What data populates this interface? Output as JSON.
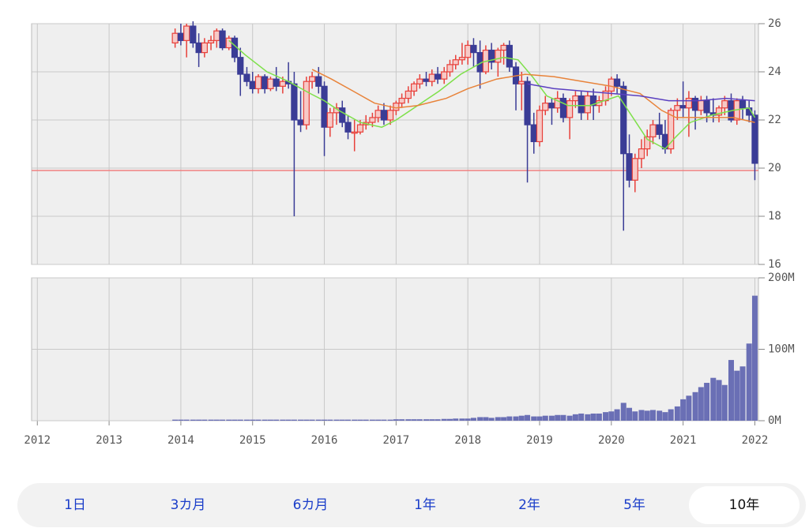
{
  "chart_data": {
    "type": "candlestick",
    "xlim": [
      2011.92,
      2022.05
    ],
    "xticks": [
      2012,
      2013,
      2014,
      2015,
      2016,
      2017,
      2018,
      2019,
      2020,
      2021,
      2022
    ],
    "ylim": [
      16,
      26
    ],
    "yticks": [
      16,
      18,
      20,
      22,
      24,
      26
    ],
    "y2lim": [
      0,
      200000000
    ],
    "y2ticks": [
      {
        "value": 0,
        "label": "0M"
      },
      {
        "value": 100000000,
        "label": "100M"
      },
      {
        "value": 200000000,
        "label": "200M"
      }
    ],
    "grid": true,
    "up_color": "#e8403a",
    "down_color": "#3a3c96",
    "volume_color": "#6a6fb5",
    "x": [
      2013.92,
      2014,
      2014.08,
      2014.17,
      2014.25,
      2014.33,
      2014.42,
      2014.5,
      2014.58,
      2014.67,
      2014.75,
      2014.83,
      2014.92,
      2015,
      2015.08,
      2015.17,
      2015.25,
      2015.33,
      2015.42,
      2015.5,
      2015.58,
      2015.67,
      2015.75,
      2015.83,
      2015.92,
      2016,
      2016.08,
      2016.17,
      2016.25,
      2016.33,
      2016.42,
      2016.5,
      2016.58,
      2016.67,
      2016.75,
      2016.83,
      2016.92,
      2017,
      2017.08,
      2017.17,
      2017.25,
      2017.33,
      2017.42,
      2017.5,
      2017.58,
      2017.67,
      2017.75,
      2017.83,
      2017.92,
      2018,
      2018.08,
      2018.17,
      2018.25,
      2018.33,
      2018.42,
      2018.5,
      2018.58,
      2018.67,
      2018.75,
      2018.83,
      2018.92,
      2019,
      2019.08,
      2019.17,
      2019.25,
      2019.33,
      2019.42,
      2019.5,
      2019.58,
      2019.67,
      2019.75,
      2019.83,
      2019.92,
      2020,
      2020.08,
      2020.17,
      2020.25,
      2020.33,
      2020.42,
      2020.5,
      2020.58,
      2020.67,
      2020.75,
      2020.83,
      2020.92,
      2021,
      2021.08,
      2021.17,
      2021.25,
      2021.33,
      2021.42,
      2021.5,
      2021.58,
      2021.67,
      2021.75,
      2021.83,
      2021.92,
      2022
    ],
    "open": [
      25.2,
      25.6,
      25.3,
      25.9,
      25.2,
      24.8,
      25.2,
      25.3,
      25.7,
      25.0,
      25.4,
      24.6,
      23.9,
      23.6,
      23.3,
      23.8,
      23.3,
      23.7,
      23.4,
      23.6,
      23.5,
      22.0,
      21.8,
      23.6,
      23.8,
      23.4,
      21.7,
      22.3,
      22.5,
      21.9,
      21.5,
      21.5,
      21.8,
      21.9,
      22.1,
      22.4,
      22.0,
      22.4,
      22.7,
      22.9,
      23.2,
      23.5,
      23.7,
      23.6,
      23.9,
      23.7,
      24.0,
      24.3,
      24.5,
      24.6,
      25.1,
      24.8,
      24.0,
      24.9,
      24.4,
      24.9,
      25.1,
      24.2,
      23.5,
      23.6,
      21.8,
      21.1,
      22.4,
      22.7,
      22.5,
      22.9,
      22.1,
      22.8,
      23.0,
      22.3,
      23.0,
      22.6,
      22.8,
      23.2,
      23.7,
      23.4,
      20.6,
      19.5,
      20.4,
      20.8,
      21.3,
      21.8,
      21.4,
      20.8,
      22.4,
      22.6,
      22.5,
      22.9,
      22.4,
      22.8,
      22.3,
      22.2,
      22.5,
      22.8,
      22.0,
      22.8,
      22.5,
      22.2
    ],
    "high": [
      25.8,
      26.0,
      26.0,
      26.1,
      25.6,
      25.4,
      25.5,
      25.8,
      25.8,
      25.5,
      25.5,
      25.0,
      24.2,
      24.0,
      23.9,
      23.9,
      23.8,
      24.2,
      23.8,
      24.4,
      24.0,
      23.2,
      23.8,
      24.0,
      24.2,
      23.6,
      22.5,
      22.7,
      22.8,
      22.2,
      22.0,
      22.0,
      22.2,
      22.3,
      22.6,
      22.7,
      22.6,
      22.8,
      23.1,
      23.4,
      23.6,
      23.9,
      24.0,
      24.1,
      24.2,
      24.2,
      24.5,
      24.7,
      25.2,
      25.3,
      25.4,
      25.3,
      25.1,
      25.2,
      25.0,
      25.2,
      25.3,
      24.4,
      24.0,
      23.8,
      22.3,
      22.6,
      23.0,
      22.9,
      23.2,
      23.1,
      22.9,
      23.2,
      23.2,
      23.2,
      23.3,
      23.0,
      23.4,
      23.8,
      23.9,
      23.6,
      21.4,
      20.6,
      21.2,
      21.6,
      22.0,
      22.3,
      22.0,
      22.5,
      22.9,
      23.6,
      23.2,
      23.0,
      23.0,
      23.0,
      22.9,
      22.6,
      23.0,
      23.1,
      22.9,
      23.0,
      22.8,
      22.4
    ],
    "low": [
      25.0,
      25.1,
      24.6,
      25.0,
      24.2,
      24.6,
      24.9,
      25.0,
      24.9,
      24.9,
      24.4,
      23.0,
      23.4,
      23.1,
      23.1,
      23.1,
      23.2,
      23.2,
      23.1,
      23.3,
      18.0,
      21.5,
      21.6,
      23.3,
      23.1,
      20.5,
      21.3,
      21.8,
      21.7,
      21.2,
      20.7,
      21.4,
      21.6,
      21.7,
      21.9,
      21.8,
      21.8,
      22.2,
      22.5,
      22.7,
      23.0,
      23.3,
      23.4,
      23.4,
      23.5,
      23.5,
      23.8,
      24.1,
      24.3,
      24.3,
      24.2,
      23.3,
      23.9,
      24.1,
      23.8,
      24.3,
      24.0,
      22.4,
      22.4,
      19.4,
      20.6,
      20.9,
      22.2,
      21.8,
      22.3,
      21.9,
      21.2,
      22.5,
      22.0,
      22.0,
      22.0,
      22.3,
      22.6,
      23.0,
      23.1,
      17.4,
      19.2,
      19.0,
      20.0,
      20.5,
      21.0,
      21.2,
      20.6,
      20.6,
      22.0,
      22.1,
      21.3,
      21.6,
      22.2,
      21.9,
      21.9,
      21.9,
      22.2,
      21.9,
      21.8,
      22.0,
      21.9,
      19.5
    ],
    "close": [
      25.6,
      25.3,
      25.9,
      25.2,
      24.8,
      25.2,
      25.3,
      25.7,
      25.0,
      25.4,
      24.6,
      23.9,
      23.6,
      23.3,
      23.8,
      23.3,
      23.7,
      23.4,
      23.6,
      23.5,
      22.0,
      21.8,
      23.6,
      23.8,
      23.4,
      21.7,
      22.3,
      22.5,
      21.9,
      21.5,
      21.5,
      21.8,
      21.9,
      22.1,
      22.4,
      22.0,
      22.4,
      22.7,
      22.9,
      23.2,
      23.5,
      23.7,
      23.6,
      23.9,
      23.7,
      24.0,
      24.3,
      24.5,
      24.6,
      25.1,
      24.8,
      24.0,
      24.9,
      24.4,
      24.9,
      25.1,
      24.2,
      23.5,
      23.6,
      21.8,
      21.1,
      22.4,
      22.7,
      22.5,
      22.9,
      22.1,
      22.8,
      23.0,
      22.3,
      23.0,
      22.6,
      22.8,
      23.2,
      23.7,
      23.4,
      20.6,
      19.5,
      20.4,
      20.8,
      21.3,
      21.8,
      21.4,
      20.8,
      22.4,
      22.6,
      22.5,
      22.9,
      22.4,
      22.8,
      22.3,
      22.2,
      22.5,
      22.8,
      22.0,
      22.8,
      22.5,
      22.2,
      20.2
    ],
    "volume": [
      1500000,
      1500000,
      1500000,
      1500000,
      1500000,
      1500000,
      1500000,
      1500000,
      1500000,
      1500000,
      1500000,
      1500000,
      1500000,
      1500000,
      1500000,
      1500000,
      1500000,
      1500000,
      1500000,
      1500000,
      1500000,
      1500000,
      1500000,
      1500000,
      1500000,
      1500000,
      1500000,
      1500000,
      1500000,
      1500000,
      1500000,
      1500000,
      1500000,
      1500000,
      1500000,
      1500000,
      1500000,
      2000000,
      2000000,
      2000000,
      2000000,
      2000000,
      2000000,
      2000000,
      2000000,
      2500000,
      2500000,
      3000000,
      3000000,
      3000000,
      4000000,
      5000000,
      5000000,
      4000000,
      5000000,
      5000000,
      6000000,
      6000000,
      7000000,
      8000000,
      6000000,
      6000000,
      7000000,
      7000000,
      8000000,
      8000000,
      7000000,
      9000000,
      10000000,
      9000000,
      10000000,
      10000000,
      12000000,
      13000000,
      16000000,
      25000000,
      18000000,
      13000000,
      15000000,
      14000000,
      15000000,
      14000000,
      12000000,
      16000000,
      20000000,
      30000000,
      35000000,
      40000000,
      47000000,
      53000000,
      60000000,
      57000000,
      50000000,
      85000000,
      70000000,
      76000000,
      108000000,
      175000000
    ],
    "moving_averages": [
      {
        "color": "#7ee04a",
        "x": [
          2014.67,
          2014.9,
          2015.2,
          2015.5,
          2015.8,
          2016.0,
          2016.2,
          2016.5,
          2016.8,
          2017.0,
          2017.3,
          2017.6,
          2017.9,
          2018.2,
          2018.5,
          2018.7,
          2018.9,
          2019.1,
          2019.4,
          2019.7,
          2019.9,
          2020.1,
          2020.3,
          2020.5,
          2020.75,
          2020.9,
          2021.1,
          2021.4,
          2021.7,
          2021.92,
          2022.0
        ],
        "values": [
          25.3,
          24.7,
          24.0,
          23.6,
          23.1,
          22.8,
          22.4,
          21.9,
          21.7,
          22.0,
          22.6,
          23.2,
          23.9,
          24.4,
          24.6,
          24.5,
          23.8,
          23.0,
          22.6,
          22.6,
          22.8,
          23.0,
          22.1,
          21.2,
          20.8,
          21.3,
          21.9,
          22.2,
          22.4,
          22.5,
          22.1
        ]
      },
      {
        "color": "#e8833a",
        "x": [
          2015.83,
          2016.1,
          2016.4,
          2016.7,
          2017.0,
          2017.3,
          2017.7,
          2018.0,
          2018.4,
          2018.8,
          2019.2,
          2019.6,
          2020.0,
          2020.4,
          2020.7,
          2020.9,
          2021.3,
          2021.7,
          2022.0
        ],
        "values": [
          24.1,
          23.7,
          23.2,
          22.7,
          22.5,
          22.6,
          22.9,
          23.3,
          23.7,
          23.9,
          23.8,
          23.6,
          23.4,
          23.1,
          22.4,
          22.1,
          22.1,
          22.1,
          21.9
        ]
      },
      {
        "color": "#5a3fc0",
        "x": [
          2018.83,
          2019.2,
          2019.6,
          2020.0,
          2020.4,
          2020.8,
          2021.2,
          2021.6,
          2022.0
        ],
        "values": [
          23.5,
          23.3,
          23.2,
          23.1,
          23.0,
          22.8,
          22.8,
          22.9,
          22.8
        ]
      }
    ],
    "reference_line": {
      "value": 19.9,
      "color": "#f08080"
    }
  },
  "tabs": {
    "items": [
      "1日",
      "3カ月",
      "6カ月",
      "1年",
      "2年",
      "5年",
      "10年"
    ],
    "selected": 6
  }
}
